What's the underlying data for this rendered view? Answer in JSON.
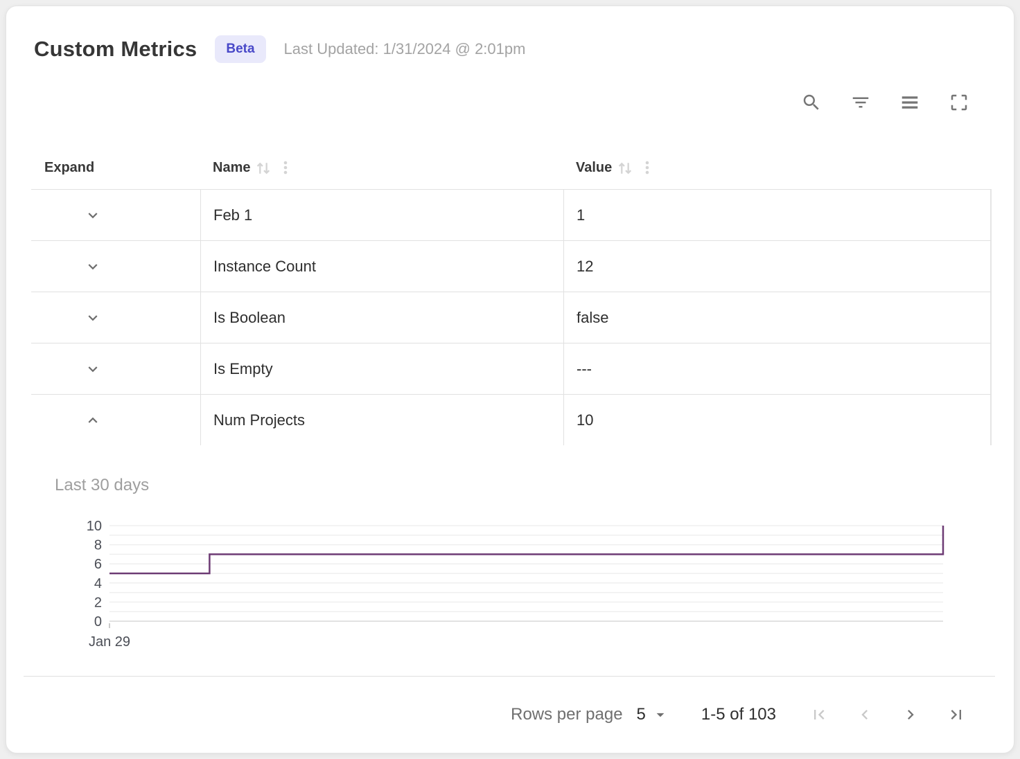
{
  "header": {
    "title": "Custom Metrics",
    "badge": "Beta",
    "last_updated": "Last Updated: 1/31/2024 @ 2:01pm"
  },
  "toolbar": {
    "icons": [
      "search",
      "filter",
      "density",
      "fullscreen"
    ]
  },
  "table": {
    "columns": [
      {
        "label": "Expand",
        "sortable": false
      },
      {
        "label": "Name",
        "sortable": true
      },
      {
        "label": "Value",
        "sortable": true
      }
    ],
    "rows": [
      {
        "name": "Feb 1",
        "value": "1",
        "expanded": false
      },
      {
        "name": "Instance Count",
        "value": "12",
        "expanded": false
      },
      {
        "name": "Is Boolean",
        "value": "false",
        "expanded": false
      },
      {
        "name": "Is Empty",
        "value": "---",
        "expanded": false
      },
      {
        "name": "Num Projects",
        "value": "10",
        "expanded": true
      }
    ]
  },
  "detail_panel": {
    "parent_row": "Num Projects",
    "label": "Last 30 days"
  },
  "chart_data": {
    "type": "line",
    "line_style": "step",
    "title": "Last 30 days",
    "series": [
      {
        "name": "Num Projects",
        "points": [
          {
            "x": 0,
            "y": 5
          },
          {
            "x": 0.12,
            "y": 5
          },
          {
            "x": 0.12,
            "y": 7
          },
          {
            "x": 1,
            "y": 7
          },
          {
            "x": 1,
            "y": 10
          }
        ]
      }
    ],
    "x_ticks": [
      {
        "pos": 0,
        "label": "Jan 29"
      }
    ],
    "y_ticks": [
      0,
      2,
      4,
      6,
      8,
      10
    ],
    "ylim": [
      0,
      10
    ],
    "x_note": "x normalized 0-1 over the last 30 days",
    "grid": "horizontal gridlines every 1 unit",
    "legend": "none",
    "line_color": "#6d3b74"
  },
  "footer": {
    "rows_per_page_label": "Rows per page",
    "rows_per_page_value": "5",
    "range_label": "1-5 of 103",
    "buttons": [
      {
        "name": "first-page",
        "disabled": true
      },
      {
        "name": "previous-page",
        "disabled": true
      },
      {
        "name": "next-page",
        "disabled": false
      },
      {
        "name": "last-page",
        "disabled": false
      }
    ]
  },
  "colors": {
    "badge_bg": "#e9e9fb",
    "badge_text": "#4848c8",
    "chart_line": "#6d3b74",
    "icon_gray": "#757575",
    "row_border": "#e1e1e1"
  }
}
